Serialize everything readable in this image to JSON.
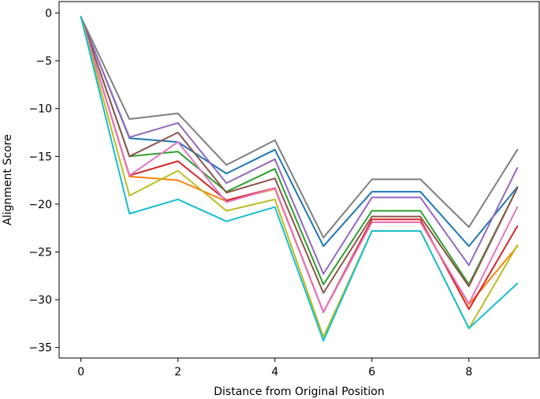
{
  "chart_data": {
    "type": "line",
    "title": "",
    "xlabel": "Distance from Original Position",
    "ylabel": "Alignment Score",
    "xlim": [
      -0.45,
      9.45
    ],
    "ylim": [
      -36.1,
      1.2
    ],
    "xticks": [
      0,
      2,
      4,
      6,
      8
    ],
    "yticks": [
      0,
      -5,
      -10,
      -15,
      -20,
      -25,
      -30,
      -35
    ],
    "grid": false,
    "legend": "none",
    "x": [
      0,
      1,
      2,
      3,
      4,
      5,
      6,
      7,
      8,
      9
    ],
    "series": [
      {
        "color": "#1f77b4",
        "values": [
          -0.4,
          -13.1,
          -13.5,
          -16.8,
          -14.3,
          -24.4,
          -18.7,
          -18.7,
          -24.4,
          -18.2
        ]
      },
      {
        "color": "#ff7f0e",
        "values": [
          -0.4,
          -17.1,
          -17.5,
          -19.7,
          -18.4,
          -31.3,
          -21.9,
          -21.9,
          -30.5,
          -24.4
        ]
      },
      {
        "color": "#2ca02c",
        "values": [
          -0.4,
          -15.0,
          -14.5,
          -18.7,
          -16.3,
          -28.4,
          -20.7,
          -20.7,
          -28.4,
          -18.3
        ]
      },
      {
        "color": "#d62728",
        "values": [
          -0.4,
          -17.0,
          -15.5,
          -19.6,
          -18.3,
          -31.3,
          -21.6,
          -21.6,
          -31.0,
          -22.3
        ]
      },
      {
        "color": "#9467bd",
        "values": [
          -0.4,
          -13.0,
          -11.5,
          -17.8,
          -15.3,
          -27.3,
          -19.3,
          -19.3,
          -26.4,
          -16.2
        ]
      },
      {
        "color": "#8c564b",
        "values": [
          -0.4,
          -15.0,
          -12.5,
          -18.8,
          -17.3,
          -29.3,
          -21.3,
          -21.3,
          -28.6,
          -18.3
        ]
      },
      {
        "color": "#e377c2",
        "values": [
          -0.4,
          -17.0,
          -13.5,
          -19.8,
          -18.3,
          -31.3,
          -21.9,
          -21.9,
          -30.4,
          -20.3
        ]
      },
      {
        "color": "#7f7f7f",
        "values": [
          -0.4,
          -11.1,
          -10.5,
          -15.9,
          -13.3,
          -23.5,
          -17.4,
          -17.4,
          -22.4,
          -14.3
        ]
      },
      {
        "color": "#bcbd22",
        "values": [
          -0.4,
          -19.1,
          -16.5,
          -20.7,
          -19.5,
          -33.9,
          -22.8,
          -22.8,
          -33.0,
          -24.3
        ]
      },
      {
        "color": "#17becf",
        "values": [
          -0.4,
          -21.0,
          -19.5,
          -21.8,
          -20.3,
          -34.3,
          -22.8,
          -22.8,
          -33.0,
          -28.3
        ]
      }
    ]
  }
}
